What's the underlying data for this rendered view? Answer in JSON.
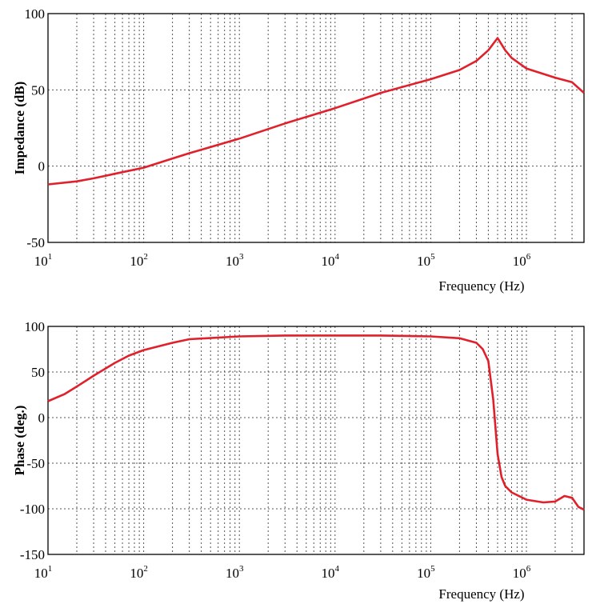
{
  "chart_data": [
    {
      "type": "line",
      "title": "",
      "xlabel": "Frequency (Hz)",
      "ylabel": "Impedance (dB)",
      "xscale": "log",
      "xlim": [
        10,
        4000000
      ],
      "ylim": [
        -50,
        100
      ],
      "yticks": [
        "-50",
        "0",
        "50",
        "100"
      ],
      "xticks": [
        {
          "base": "10",
          "exp": "1"
        },
        {
          "base": "10",
          "exp": "2"
        },
        {
          "base": "10",
          "exp": "3"
        },
        {
          "base": "10",
          "exp": "4"
        },
        {
          "base": "10",
          "exp": "5"
        },
        {
          "base": "10",
          "exp": "6"
        }
      ],
      "grid": true,
      "series": [
        {
          "name": "Impedance",
          "color": "#e0202a",
          "x": [
            10,
            20,
            30,
            50,
            100,
            200,
            300,
            1000,
            3000,
            10000,
            30000,
            100000,
            200000,
            300000,
            400000,
            500000,
            600000,
            700000,
            1000000,
            2000000,
            3000000,
            4000000
          ],
          "y": [
            -12,
            -10,
            -8,
            -5,
            -1,
            5,
            8.5,
            18,
            28,
            38,
            48,
            57,
            63,
            69,
            76,
            84,
            76,
            71,
            64,
            58,
            55,
            48
          ]
        }
      ]
    },
    {
      "type": "line",
      "title": "",
      "xlabel": "Frequency (Hz)",
      "ylabel": "Phase (deg.)",
      "xscale": "log",
      "xlim": [
        10,
        4000000
      ],
      "ylim": [
        -150,
        100
      ],
      "yticks": [
        "-150",
        "-100",
        "-50",
        "0",
        "50",
        "100"
      ],
      "xticks": [
        {
          "base": "10",
          "exp": "1"
        },
        {
          "base": "10",
          "exp": "2"
        },
        {
          "base": "10",
          "exp": "3"
        },
        {
          "base": "10",
          "exp": "4"
        },
        {
          "base": "10",
          "exp": "5"
        },
        {
          "base": "10",
          "exp": "6"
        }
      ],
      "grid": true,
      "series": [
        {
          "name": "Phase",
          "color": "#e0202a",
          "x": [
            10,
            15,
            20,
            30,
            50,
            70,
            100,
            200,
            300,
            1000,
            3000,
            10000,
            30000,
            100000,
            200000,
            300000,
            350000,
            400000,
            450000,
            500000,
            550000,
            600000,
            700000,
            1000000,
            1500000,
            2000000,
            2500000,
            3000000,
            3500000,
            4000000
          ],
          "y": [
            18,
            26,
            34,
            46,
            60,
            68,
            74,
            82,
            86,
            89,
            90,
            90,
            90,
            89,
            87,
            82,
            75,
            62,
            20,
            -40,
            -65,
            -75,
            -82,
            -90,
            -93,
            -92,
            -86,
            -88,
            -98,
            -101
          ]
        }
      ]
    }
  ]
}
